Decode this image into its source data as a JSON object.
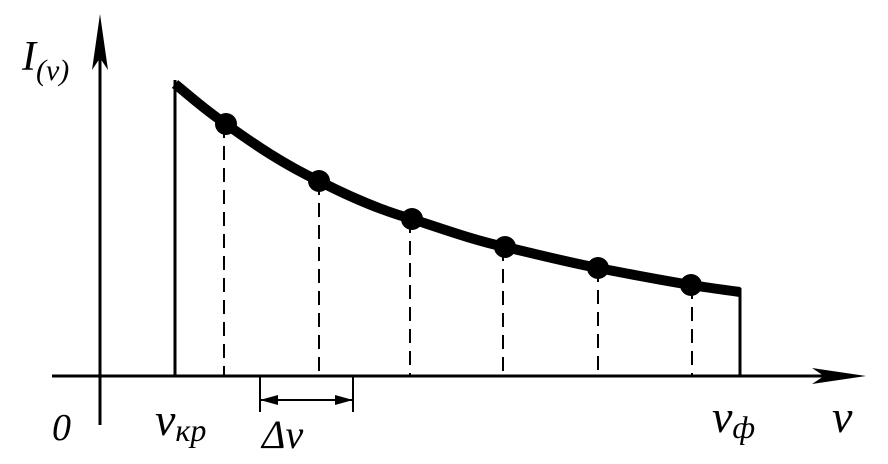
{
  "y_axis_label": {
    "symbol": "I",
    "subscript": "(ν)"
  },
  "origin_label": "0",
  "x_axis_label": "ν",
  "start_label": {
    "symbol": "ν",
    "subscript": "кр"
  },
  "step_label": "Δν",
  "end_label": {
    "symbol": "ν",
    "subscript": "ф"
  }
}
